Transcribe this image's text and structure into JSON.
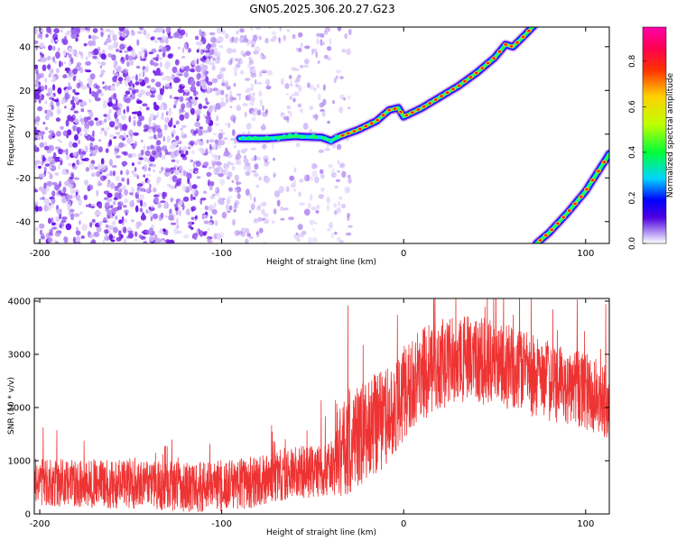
{
  "title": "GN05.2025.306.20.27.G23",
  "chart_data": [
    {
      "type": "heatmap",
      "title": "GN05.2025.306.20.27.G23",
      "xlabel": "Height of straight line (km)",
      "ylabel": "Frequency (Hz)",
      "xlim": [
        -203,
        113
      ],
      "ylim": [
        -50,
        49
      ],
      "xticks": [
        -200,
        -100,
        0,
        100
      ],
      "yticks": [
        -40,
        -20,
        0,
        20,
        40
      ],
      "colorbar": {
        "label": "Normalized spectral amplitude",
        "range": [
          0,
          0.95
        ],
        "ticks": [
          "0.0",
          "0.2",
          "0.4",
          "0.6",
          "0.8"
        ],
        "tick_values": [
          0,
          0.2,
          0.4,
          0.6,
          0.8
        ],
        "colors": [
          "#ffffff",
          "#a37ff0",
          "#4f00e0",
          "#0000ff",
          "#00d4ff",
          "#00ff3a",
          "#bfff00",
          "#ffd000",
          "#ff3300",
          "#ff0050",
          "#ff00aa"
        ]
      },
      "ridge_main": [
        [
          -90,
          -2
        ],
        [
          -75,
          -2
        ],
        [
          -60,
          -1
        ],
        [
          -45,
          -1.5
        ],
        [
          -40,
          -3
        ],
        [
          -35,
          -1
        ],
        [
          -25,
          2
        ],
        [
          -15,
          6
        ],
        [
          -8,
          11
        ],
        [
          -3,
          12
        ],
        [
          0,
          8
        ],
        [
          10,
          12
        ],
        [
          20,
          17
        ],
        [
          30,
          22
        ],
        [
          40,
          28
        ],
        [
          50,
          35
        ],
        [
          56,
          41
        ],
        [
          60,
          40
        ],
        [
          65,
          44
        ],
        [
          72,
          50
        ]
      ],
      "ridge_aliased": [
        [
          73,
          -50
        ],
        [
          80,
          -45
        ],
        [
          90,
          -36
        ],
        [
          100,
          -26
        ],
        [
          110,
          -13
        ],
        [
          113,
          -9
        ]
      ],
      "noise_region": [
        -203,
        -33
      ]
    },
    {
      "type": "line",
      "xlabel": "Height of straight line (km)",
      "ylabel": "SNR (10 * v/v)",
      "xlim": [
        -203,
        113
      ],
      "ylim": [
        0,
        4050
      ],
      "xticks": [
        -200,
        -100,
        0,
        100
      ],
      "yticks": [
        0,
        1000,
        2000,
        3000,
        4000
      ],
      "series": [
        {
          "name": "SNR",
          "color": "#ee3333",
          "envelope": [
            [
              -203,
              600
            ],
            [
              -150,
              550
            ],
            [
              -110,
              500
            ],
            [
              -80,
              600
            ],
            [
              -65,
              750
            ],
            [
              -50,
              800
            ],
            [
              -40,
              850
            ],
            [
              -33,
              1300
            ],
            [
              -20,
              1600
            ],
            [
              -10,
              1800
            ],
            [
              0,
              2200
            ],
            [
              10,
              2650
            ],
            [
              25,
              2850
            ],
            [
              40,
              2900
            ],
            [
              55,
              2800
            ],
            [
              70,
              2600
            ],
            [
              85,
              2450
            ],
            [
              100,
              2300
            ],
            [
              113,
              2100
            ]
          ],
          "spread": [
            [
              -203,
              450
            ],
            [
              -40,
              500
            ],
            [
              -33,
              1000
            ],
            [
              0,
              900
            ],
            [
              113,
              700
            ]
          ]
        }
      ]
    }
  ]
}
